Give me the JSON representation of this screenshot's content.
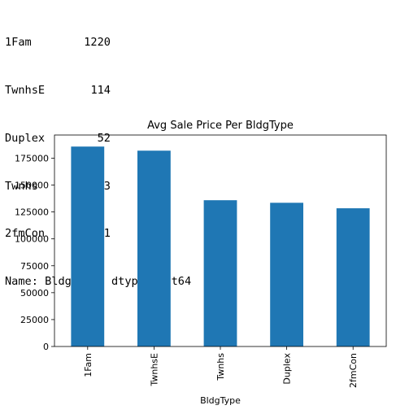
{
  "output": {
    "value_counts": [
      {
        "key": "1Fam",
        "count": "1220"
      },
      {
        "key": "TwnhsE",
        "count": "114"
      },
      {
        "key": "Duplex",
        "count": "52"
      },
      {
        "key": "Twnhs",
        "count": "43"
      },
      {
        "key": "2fmCon",
        "count": "31"
      }
    ],
    "footer": "Name: BldgType, dtype: int64"
  },
  "chart_data": {
    "type": "bar",
    "title": "Avg Sale Price Per BldgType",
    "xlabel": "BldgType",
    "ylabel": "",
    "categories": [
      "1Fam",
      "TwnhsE",
      "Twnhs",
      "Duplex",
      "2fmCon"
    ],
    "values": [
      185764,
      181959,
      135912,
      133541,
      128432
    ],
    "ylim": [
      0,
      196500
    ],
    "yticks": [
      0,
      25000,
      50000,
      75000,
      100000,
      125000,
      150000,
      175000
    ],
    "bar_color": "#1f77b4",
    "grid": false
  }
}
